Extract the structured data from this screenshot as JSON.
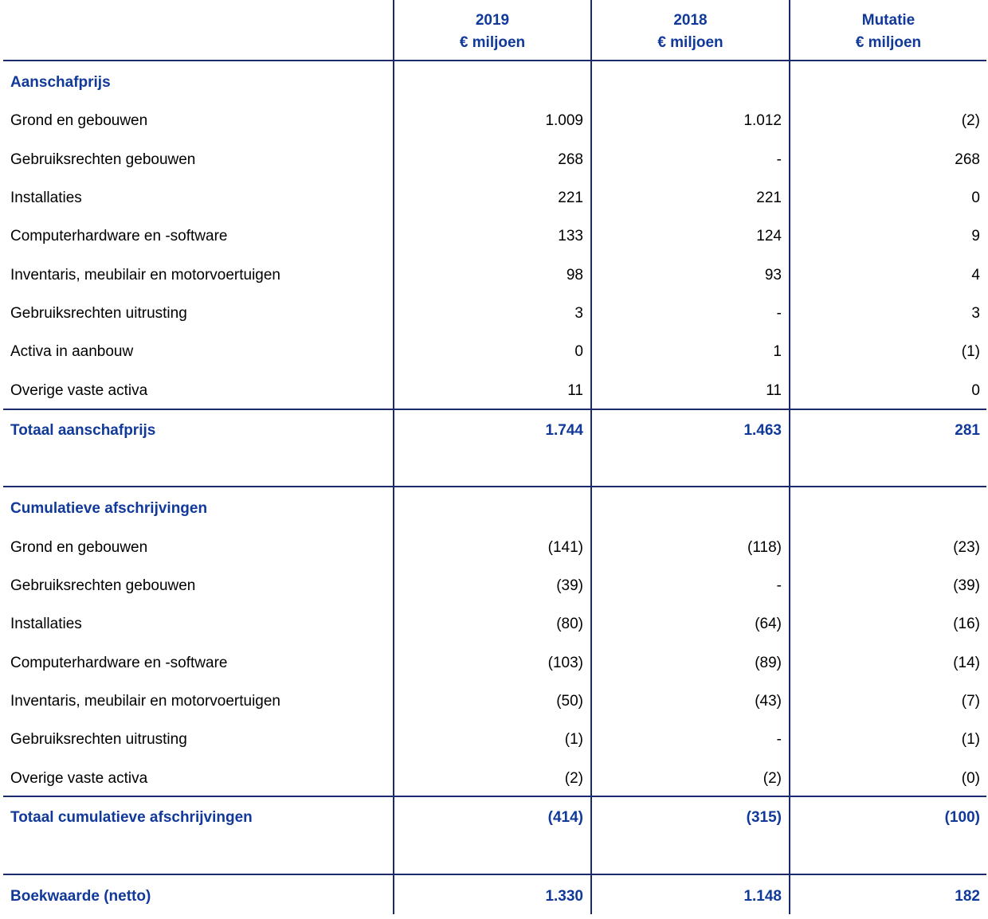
{
  "headers": [
    {
      "line1": "2019",
      "line2": "€ miljoen"
    },
    {
      "line1": "2018",
      "line2": "€ miljoen"
    },
    {
      "line1": "Mutatie",
      "line2": "€ miljoen"
    }
  ],
  "section1": {
    "title": "Aanschafprijs",
    "rows": [
      {
        "label": "Grond en gebouwen",
        "v2019": "1.009",
        "v2018": "1.012",
        "mut": "(2)"
      },
      {
        "label": "Gebruiksrechten gebouwen",
        "v2019": "268",
        "v2018": "-",
        "mut": "268"
      },
      {
        "label": "Installaties",
        "v2019": "221",
        "v2018": "221",
        "mut": "0"
      },
      {
        "label": "Computerhardware en -software",
        "v2019": "133",
        "v2018": "124",
        "mut": "9"
      },
      {
        "label": "Inventaris, meubilair en motorvoertuigen",
        "v2019": "98",
        "v2018": "93",
        "mut": "4"
      },
      {
        "label": "Gebruiksrechten uitrusting",
        "v2019": "3",
        "v2018": "-",
        "mut": "3"
      },
      {
        "label": "Activa in aanbouw",
        "v2019": "0",
        "v2018": "1",
        "mut": "(1)"
      },
      {
        "label": "Overige vaste activa",
        "v2019": "11",
        "v2018": "11",
        "mut": "0"
      }
    ],
    "total": {
      "label": "Totaal aanschafprijs",
      "v2019": "1.744",
      "v2018": "1.463",
      "mut": "281"
    }
  },
  "section2": {
    "title": "Cumulatieve afschrijvingen",
    "rows": [
      {
        "label": "Grond en gebouwen",
        "v2019": "(141)",
        "v2018": "(118)",
        "mut": "(23)"
      },
      {
        "label": "Gebruiksrechten gebouwen",
        "v2019": "(39)",
        "v2018": "-",
        "mut": "(39)"
      },
      {
        "label": "Installaties",
        "v2019": "(80)",
        "v2018": "(64)",
        "mut": "(16)"
      },
      {
        "label": "Computerhardware en -software",
        "v2019": "(103)",
        "v2018": "(89)",
        "mut": "(14)"
      },
      {
        "label": "Inventaris, meubilair en motorvoertuigen",
        "v2019": "(50)",
        "v2018": "(43)",
        "mut": "(7)"
      },
      {
        "label": "Gebruiksrechten uitrusting",
        "v2019": "(1)",
        "v2018": "-",
        "mut": "(1)"
      },
      {
        "label": "Overige vaste activa",
        "v2019": "(2)",
        "v2018": "(2)",
        "mut": "(0)"
      }
    ],
    "total": {
      "label": "Totaal cumulatieve afschrijvingen",
      "v2019": "(414)",
      "v2018": "(315)",
      "mut": "(100)"
    }
  },
  "boekwaarde": {
    "label": "Boekwaarde (netto)",
    "v2019": "1.330",
    "v2018": "1.148",
    "mut": "182"
  }
}
